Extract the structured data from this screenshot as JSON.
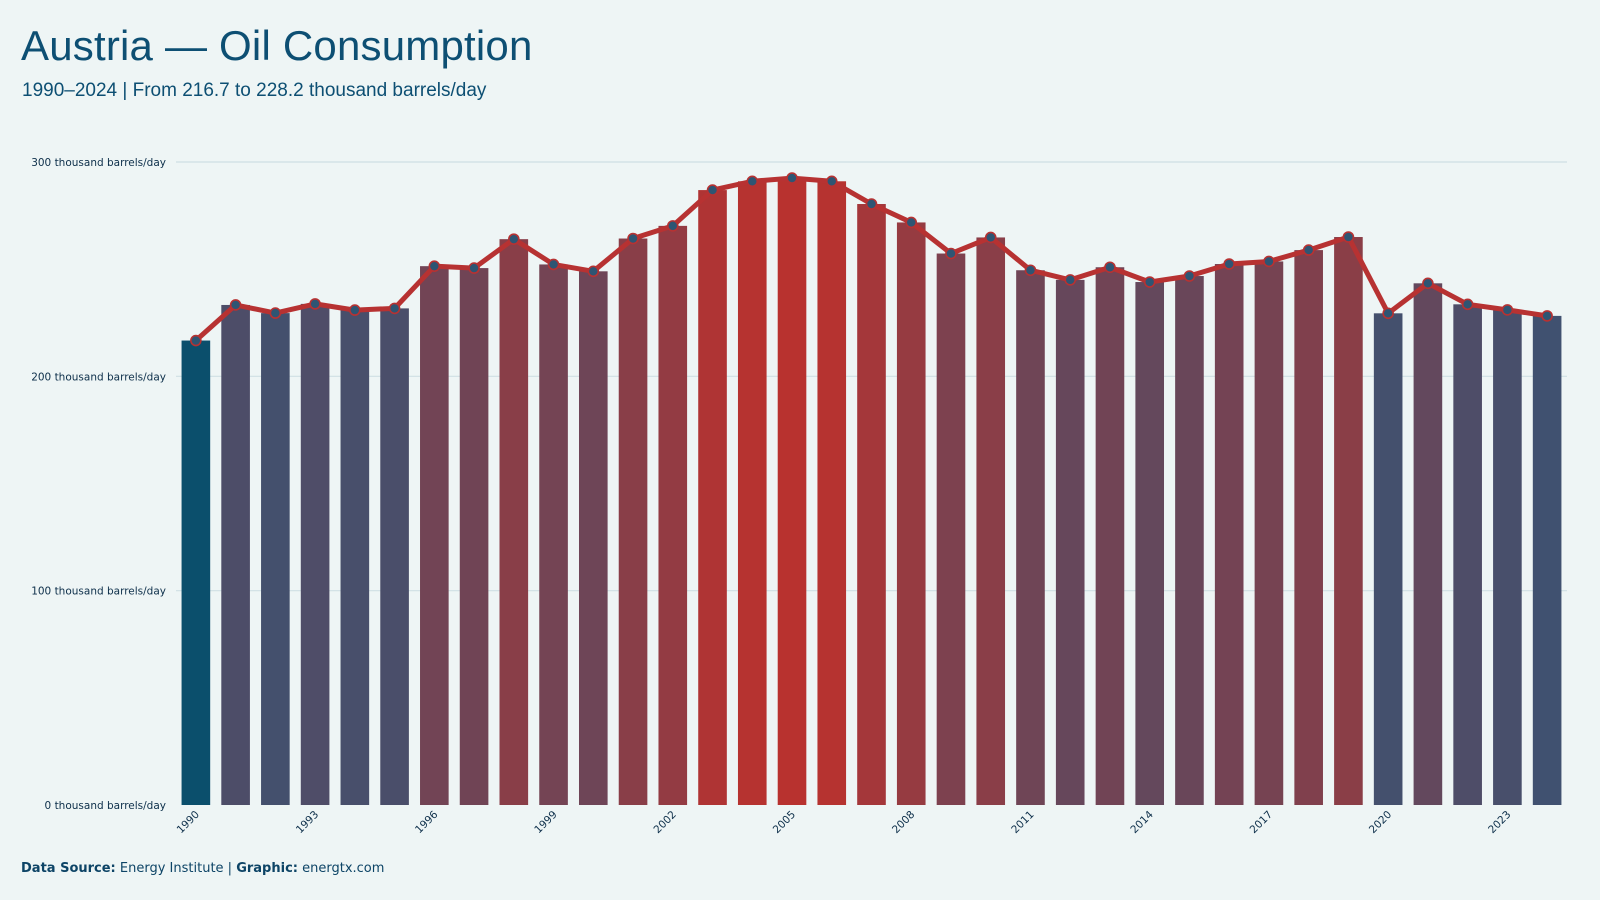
{
  "header": {
    "title": "Austria — Oil Consumption",
    "subtitle": "1990–2024 | From 216.7 to 228.2 thousand barrels/day"
  },
  "footer": {
    "source_label": "Data Source:",
    "source_value": "Energy Institute |",
    "graphic_label": "Graphic:",
    "graphic_value": "energtx.com"
  },
  "colors": {
    "background": "#eef5f5",
    "first_bar": "#0b4f6c",
    "low_bar": "#3f5170",
    "high_bar": "#b8322f",
    "line": "#b73232",
    "marker_fill": "#2e5573",
    "gridline": "#cfdfe3"
  },
  "chart_data": {
    "type": "bar",
    "title": "Austria — Oil Consumption",
    "subtitle": "1990–2024 | From 216.7 to 228.2 thousand barrels/day",
    "xlabel": "",
    "ylabel": "",
    "unit": "thousand barrels/day",
    "ylim": [
      0,
      300
    ],
    "yticks": [
      0,
      100,
      200,
      300
    ],
    "ytick_labels": [
      "0 thousand barrels/day",
      "100 thousand barrels/day",
      "200 thousand barrels/day",
      "300 thousand barrels/day"
    ],
    "xtick_labels": [
      "1990",
      "1993",
      "1996",
      "1999",
      "2002",
      "2005",
      "2008",
      "2011",
      "2014",
      "2017",
      "2020",
      "2023"
    ],
    "grid": true,
    "overlay": "line with markers",
    "categories": [
      "1990",
      "1991",
      "1992",
      "1993",
      "1994",
      "1995",
      "1996",
      "1997",
      "1998",
      "1999",
      "2000",
      "2001",
      "2002",
      "2003",
      "2004",
      "2005",
      "2006",
      "2007",
      "2008",
      "2009",
      "2010",
      "2011",
      "2012",
      "2013",
      "2014",
      "2015",
      "2016",
      "2017",
      "2018",
      "2019",
      "2020",
      "2021",
      "2022",
      "2023",
      "2024"
    ],
    "values": [
      216.7,
      233.3,
      229.5,
      233.8,
      230.9,
      231.7,
      251.4,
      250.5,
      264.0,
      252.2,
      249.0,
      264.3,
      270.2,
      286.9,
      291.0,
      292.5,
      291.0,
      280.4,
      271.8,
      257.3,
      264.8,
      249.5,
      245.0,
      250.9,
      244.0,
      246.8,
      252.4,
      253.6,
      258.9,
      265.0,
      229.4,
      243.4,
      233.6,
      231.0,
      228.2
    ]
  }
}
